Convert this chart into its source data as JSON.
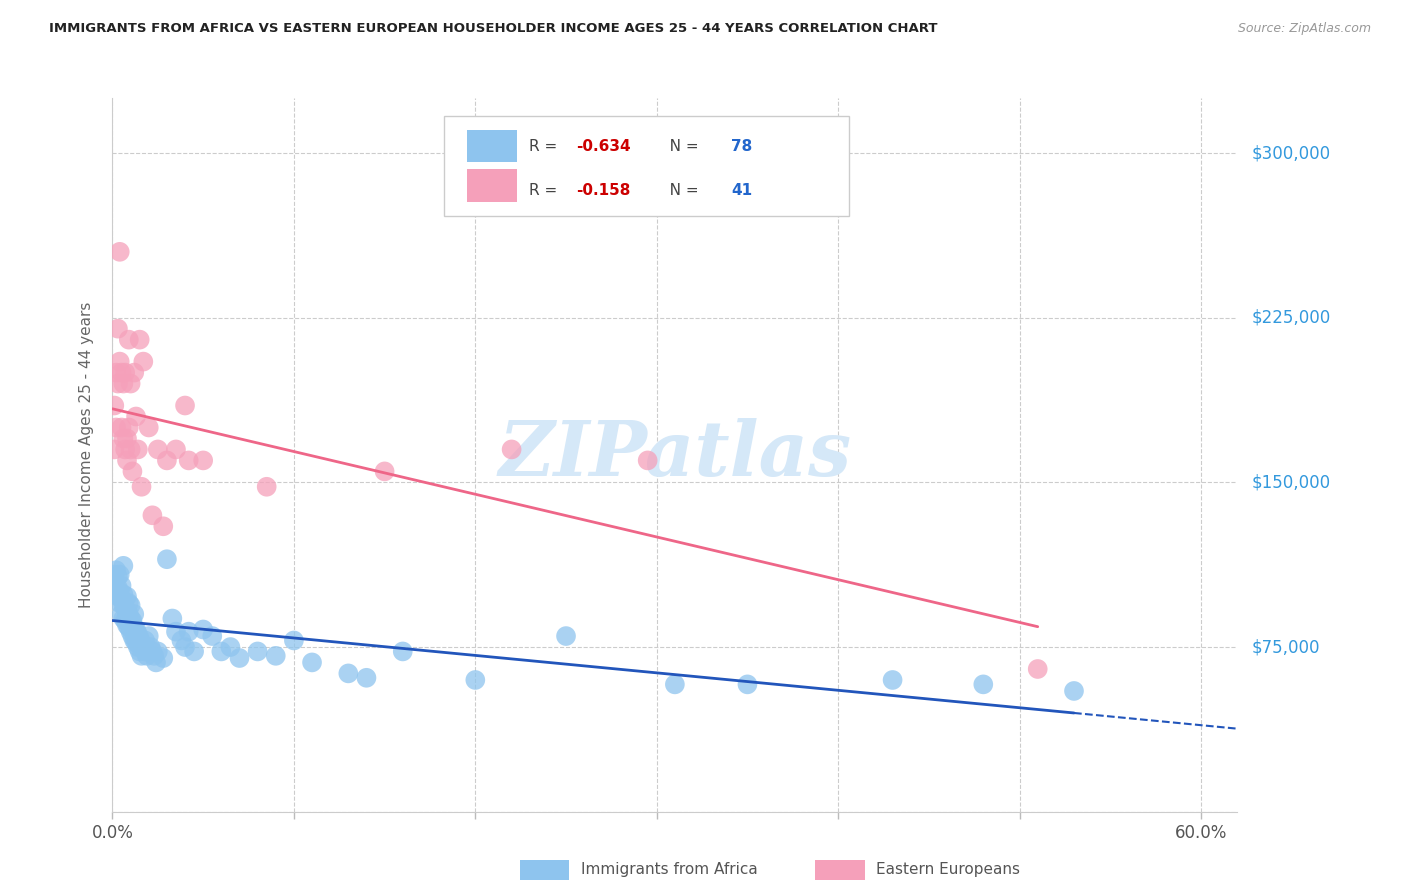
{
  "title": "IMMIGRANTS FROM AFRICA VS EASTERN EUROPEAN HOUSEHOLDER INCOME AGES 25 - 44 YEARS CORRELATION CHART",
  "source": "Source: ZipAtlas.com",
  "ylabel": "Householder Income Ages 25 - 44 years",
  "xlim": [
    0.0,
    0.62
  ],
  "ylim": [
    0,
    325000
  ],
  "xticks": [
    0.0,
    0.1,
    0.2,
    0.3,
    0.4,
    0.5,
    0.6
  ],
  "xticklabels": [
    "0.0%",
    "",
    "",
    "",
    "",
    "",
    "60.0%"
  ],
  "yticks": [
    0,
    75000,
    150000,
    225000,
    300000
  ],
  "yticklabels": [
    "",
    "$75,000",
    "$150,000",
    "$225,000",
    "$300,000"
  ],
  "africa_color": "#8EC4EE",
  "europe_color": "#F5A0BA",
  "africa_line_color": "#2255BB",
  "europe_line_color": "#EE6688",
  "background_color": "#FFFFFF",
  "grid_color": "#CCCCCC",
  "right_label_color": "#3399DD",
  "title_color": "#222222",
  "watermark_color": "#D5E8F8",
  "africa_R": "-0.634",
  "africa_N": "78",
  "europe_R": "-0.158",
  "europe_N": "41",
  "legend_R_color": "#CC0000",
  "legend_N_color": "#2266CC",
  "africa_scatter_x": [
    0.001,
    0.001,
    0.002,
    0.002,
    0.003,
    0.003,
    0.003,
    0.004,
    0.004,
    0.004,
    0.005,
    0.005,
    0.005,
    0.006,
    0.006,
    0.006,
    0.006,
    0.007,
    0.007,
    0.008,
    0.008,
    0.008,
    0.009,
    0.009,
    0.009,
    0.01,
    0.01,
    0.01,
    0.011,
    0.011,
    0.012,
    0.012,
    0.012,
    0.013,
    0.013,
    0.014,
    0.014,
    0.015,
    0.015,
    0.016,
    0.016,
    0.017,
    0.018,
    0.018,
    0.019,
    0.02,
    0.021,
    0.022,
    0.023,
    0.024,
    0.025,
    0.028,
    0.03,
    0.033,
    0.035,
    0.038,
    0.04,
    0.042,
    0.045,
    0.05,
    0.055,
    0.06,
    0.065,
    0.07,
    0.08,
    0.09,
    0.1,
    0.11,
    0.13,
    0.14,
    0.16,
    0.2,
    0.25,
    0.31,
    0.35,
    0.43,
    0.48,
    0.53
  ],
  "africa_scatter_y": [
    105000,
    108000,
    100000,
    110000,
    98000,
    102000,
    107000,
    95000,
    100000,
    108000,
    90000,
    97000,
    103000,
    88000,
    94000,
    99000,
    112000,
    87000,
    93000,
    85000,
    91000,
    98000,
    84000,
    90000,
    95000,
    82000,
    88000,
    94000,
    80000,
    87000,
    78000,
    84000,
    90000,
    77000,
    83000,
    75000,
    81000,
    73000,
    79000,
    71000,
    77000,
    75000,
    73000,
    78000,
    71000,
    80000,
    75000,
    73000,
    71000,
    68000,
    73000,
    70000,
    115000,
    88000,
    82000,
    78000,
    75000,
    82000,
    73000,
    83000,
    80000,
    73000,
    75000,
    70000,
    73000,
    71000,
    78000,
    68000,
    63000,
    61000,
    73000,
    60000,
    80000,
    58000,
    58000,
    60000,
    58000,
    55000
  ],
  "europe_scatter_x": [
    0.001,
    0.001,
    0.002,
    0.002,
    0.003,
    0.003,
    0.004,
    0.004,
    0.005,
    0.005,
    0.006,
    0.006,
    0.007,
    0.007,
    0.008,
    0.008,
    0.009,
    0.009,
    0.01,
    0.01,
    0.011,
    0.012,
    0.013,
    0.014,
    0.015,
    0.016,
    0.017,
    0.02,
    0.022,
    0.025,
    0.028,
    0.03,
    0.035,
    0.04,
    0.042,
    0.05,
    0.085,
    0.15,
    0.22,
    0.295,
    0.51
  ],
  "europe_scatter_y": [
    165000,
    185000,
    175000,
    200000,
    195000,
    220000,
    205000,
    255000,
    175000,
    200000,
    170000,
    195000,
    165000,
    200000,
    170000,
    160000,
    215000,
    175000,
    165000,
    195000,
    155000,
    200000,
    180000,
    165000,
    215000,
    148000,
    205000,
    175000,
    135000,
    165000,
    130000,
    160000,
    165000,
    185000,
    160000,
    160000,
    148000,
    155000,
    165000,
    160000,
    65000
  ]
}
